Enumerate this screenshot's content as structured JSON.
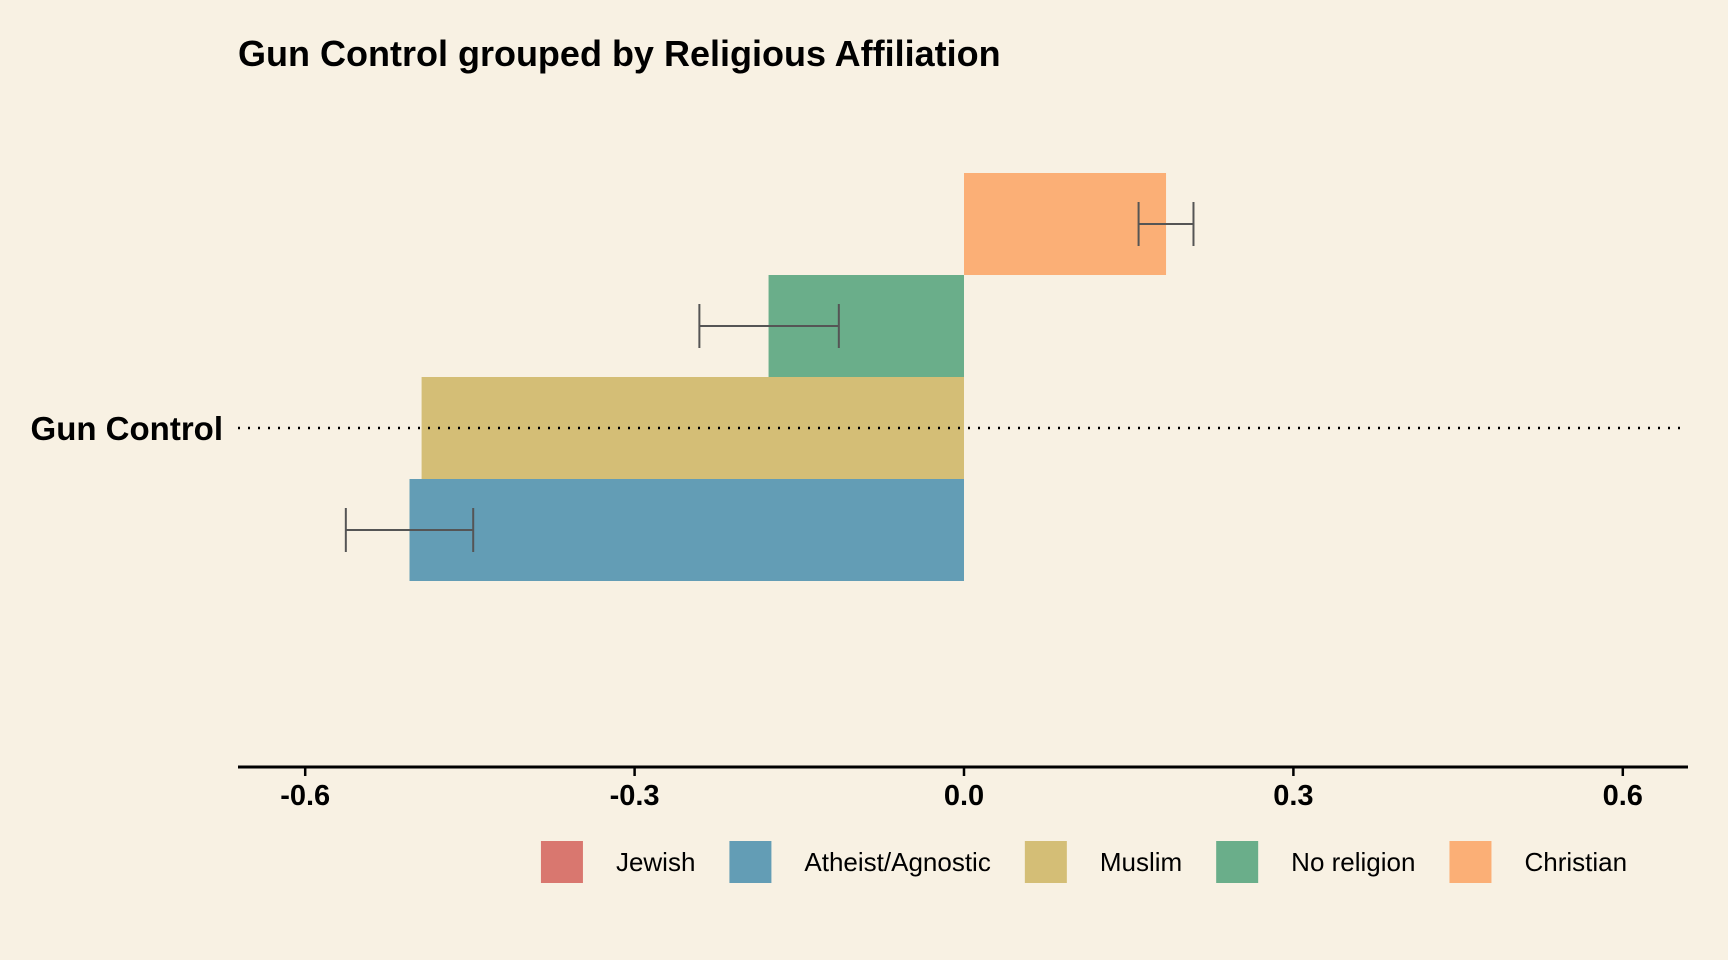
{
  "chart_data": {
    "type": "bar",
    "orientation": "horizontal",
    "title": "Gun Control grouped by Religious Affiliation",
    "xlabel": "",
    "ylabel": "",
    "categories": [
      "Gun Control"
    ],
    "xlim": [
      -0.66,
      0.66
    ],
    "xticks": [
      -0.6,
      -0.3,
      0.0,
      0.3,
      0.6
    ],
    "xtick_labels": [
      "-0.6",
      "-0.3",
      "0.0",
      "0.3",
      "0.6"
    ],
    "grid": false,
    "legend_position": "bottom",
    "series": [
      {
        "name": "Jewish",
        "color": "#d9776f",
        "values": [
          null
        ],
        "error_low": [
          null
        ],
        "error_high": [
          null
        ]
      },
      {
        "name": "Atheist/Agnostic",
        "color": "#639db5",
        "values": [
          -0.505
        ],
        "error_low": [
          -0.563
        ],
        "error_high": [
          -0.447
        ]
      },
      {
        "name": "Muslim",
        "color": "#d4be76",
        "values": [
          -0.494
        ],
        "error_low": [
          null
        ],
        "error_high": [
          null
        ]
      },
      {
        "name": "No religion",
        "color": "#6aae8a",
        "values": [
          -0.178
        ],
        "error_low": [
          -0.241
        ],
        "error_high": [
          -0.114
        ]
      },
      {
        "name": "Christian",
        "color": "#fbaf76",
        "values": [
          0.184
        ],
        "error_low": [
          0.159
        ],
        "error_high": [
          0.209
        ]
      }
    ]
  },
  "colors": {
    "background": "#f8f1e3",
    "errorbar": "#555555",
    "axis": "#000000"
  }
}
